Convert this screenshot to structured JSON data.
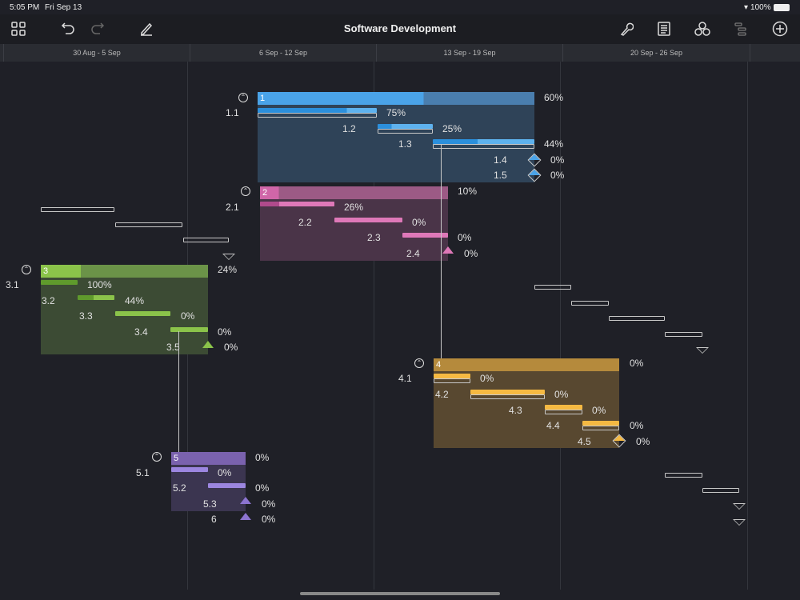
{
  "status_bar": {
    "time": "5:05 PM",
    "date": "Fri Sep 13",
    "battery": "100%"
  },
  "toolbar": {
    "title": "Software Development",
    "icons": [
      "grid-icon",
      "undo-icon",
      "redo-icon",
      "pencil-icon",
      "wrench-icon",
      "document-icon",
      "circles-icon",
      "outline-icon",
      "plus-icon"
    ]
  },
  "timeline": {
    "weeks": [
      "30 Aug - 5 Sep",
      "6 Sep - 12 Sep",
      "13 Sep - 19 Sep",
      "20 Sep - 26 Sep"
    ]
  },
  "colors": {
    "blue": "#4aa3e8",
    "pink": "#d066a8",
    "green": "#8bc34a",
    "orange": "#f5b942",
    "purple": "#8c74d0"
  },
  "groups": [
    {
      "id": "1",
      "progress": "60%",
      "tasks": [
        {
          "id": "1.1",
          "progress": "75%"
        },
        {
          "id": "1.2",
          "progress": "25%"
        },
        {
          "id": "1.3",
          "progress": "44%"
        },
        {
          "id": "1.4",
          "progress": "0%"
        },
        {
          "id": "1.5",
          "progress": "0%"
        }
      ]
    },
    {
      "id": "2",
      "progress": "10%",
      "tasks": [
        {
          "id": "2.1",
          "progress": "26%"
        },
        {
          "id": "2.2",
          "progress": "0%"
        },
        {
          "id": "2.3",
          "progress": "0%"
        },
        {
          "id": "2.4",
          "progress": "0%"
        }
      ]
    },
    {
      "id": "3",
      "progress": "24%",
      "tasks": [
        {
          "id": "3.1",
          "progress": "100%"
        },
        {
          "id": "3.2",
          "progress": "44%"
        },
        {
          "id": "3.3",
          "progress": "0%"
        },
        {
          "id": "3.4",
          "progress": "0%"
        },
        {
          "id": "3.5",
          "progress": "0%"
        }
      ]
    },
    {
      "id": "4",
      "progress": "0%",
      "tasks": [
        {
          "id": "4.1",
          "progress": "0%"
        },
        {
          "id": "4.2",
          "progress": "0%"
        },
        {
          "id": "4.3",
          "progress": "0%"
        },
        {
          "id": "4.4",
          "progress": "0%"
        },
        {
          "id": "4.5",
          "progress": "0%"
        }
      ]
    },
    {
      "id": "5",
      "progress": "0%",
      "tasks": [
        {
          "id": "5.1",
          "progress": "0%"
        },
        {
          "id": "5.2",
          "progress": "0%"
        },
        {
          "id": "5.3",
          "progress": "0%"
        }
      ]
    }
  ],
  "milestone_6": {
    "id": "6",
    "progress": "0%"
  }
}
